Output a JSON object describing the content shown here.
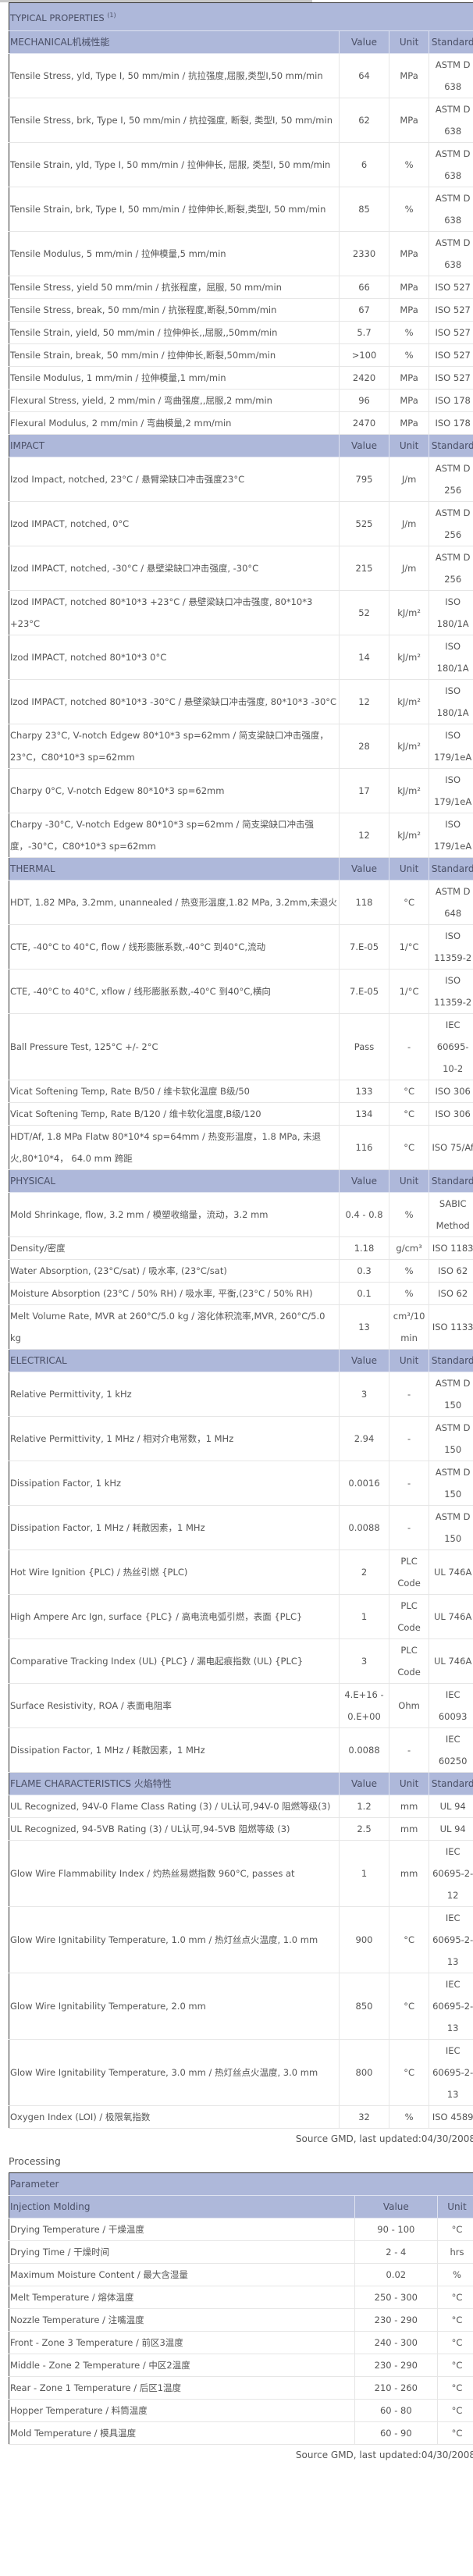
{
  "typical": {
    "title": "TYPICAL PROPERTIES",
    "title_sup": "(1)",
    "col_value": "Value",
    "col_unit": "Unit",
    "col_standard": "Standard",
    "sections": [
      {
        "name": "MECHANICAL机械性能",
        "rows": [
          [
            "Tensile Stress, yld, Type I, 50 mm/min / 抗拉强度,屈服,类型I,50 mm/min",
            "64",
            "MPa",
            "ASTM D 638"
          ],
          [
            "Tensile Stress, brk, Type I, 50 mm/min / 抗拉强度, 断裂, 类型I, 50 mm/min",
            "62",
            "MPa",
            "ASTM D 638"
          ],
          [
            "Tensile Strain, yld, Type I, 50 mm/min / 拉伸伸长, 屈服, 类型I, 50 mm/min",
            "6",
            "%",
            "ASTM D 638"
          ],
          [
            "Tensile Strain, brk, Type I, 50 mm/min / 拉伸伸长,断裂,类型I, 50 mm/min",
            "85",
            "%",
            "ASTM D 638"
          ],
          [
            "Tensile Modulus, 5 mm/min / 拉伸模量,5 mm/min",
            "2330",
            "MPa",
            "ASTM D 638"
          ],
          [
            "Tensile Stress, yield 50 mm/min / 抗张程度，屈服, 50 mm/min",
            "66",
            "MPa",
            "ISO 527"
          ],
          [
            "Tensile Stress, break, 50 mm/min / 抗张程度,断裂,50mm/min",
            "67",
            "MPa",
            "ISO 527"
          ],
          [
            "Tensile Strain, yield, 50 mm/min / 拉伸伸长,,屈服,,50mm/min",
            "5.7",
            "%",
            "ISO 527"
          ],
          [
            "Tensile Strain, break, 50 mm/min / 拉伸伸长,断裂,50mm/min",
            ">100",
            "%",
            "ISO 527"
          ],
          [
            "Tensile Modulus, 1 mm/min / 拉伸模量,1 mm/min",
            "2420",
            "MPa",
            "ISO 527"
          ],
          [
            "Flexural Stress, yield, 2 mm/min / 弯曲强度,,屈服,2 mm/min",
            "96",
            "MPa",
            "ISO 178"
          ],
          [
            "Flexural Modulus, 2 mm/min / 弯曲模量,2 mm/min",
            "2470",
            "MPa",
            "ISO 178"
          ]
        ]
      },
      {
        "name": "IMPACT",
        "rows": [
          [
            "Izod Impact, notched, 23°C / 悬臂梁缺口冲击强度23°C",
            "795",
            "J/m",
            "ASTM D 256"
          ],
          [
            "Izod IMPACT, notched, 0°C",
            "525",
            "J/m",
            "ASTM D 256"
          ],
          [
            "Izod IMPACT, notched, -30°C / 悬壁梁缺口冲击强度, -30°C",
            "215",
            "J/m",
            "ASTM D 256"
          ],
          [
            "Izod IMPACT, notched 80*10*3 +23°C / 悬壁梁缺口冲击强度, 80*10*3 +23°C",
            "52",
            "kJ/m²",
            "ISO 180/1A"
          ],
          [
            "Izod IMPACT, notched 80*10*3 0°C",
            "14",
            "kJ/m²",
            "ISO 180/1A"
          ],
          [
            "Izod IMPACT, notched 80*10*3 -30°C / 悬壁梁缺口冲击强度, 80*10*3 -30°C",
            "12",
            "kJ/m²",
            "ISO 180/1A"
          ],
          [
            "Charpy 23°C, V-notch Edgew 80*10*3 sp=62mm / 简支梁缺口冲击强度，23°C，C80*10*3 sp=62mm",
            "28",
            "kJ/m²",
            "ISO 179/1eA"
          ],
          [
            "Charpy 0°C, V-notch Edgew 80*10*3 sp=62mm",
            "17",
            "kJ/m²",
            "ISO 179/1eA"
          ],
          [
            "Charpy -30°C, V-notch Edgew 80*10*3 sp=62mm / 简支梁缺口冲击强度，-30°C，C80*10*3 sp=62mm",
            "12",
            "kJ/m²",
            "ISO 179/1eA"
          ]
        ]
      },
      {
        "name": "THERMAL",
        "rows": [
          [
            "HDT, 1.82 MPa, 3.2mm, unannealed / 热变形温度,1.82 MPa, 3.2mm,未退火",
            "118",
            "°C",
            "ASTM D 648"
          ],
          [
            "CTE, -40°C to 40°C, flow / 线形膨胀系数,-40°C 到40°C,流动",
            "7.E-05",
            "1/°C",
            "ISO 11359-2"
          ],
          [
            "CTE, -40°C to 40°C, xflow / 线形膨胀系数,-40°C 到40°C,横向",
            "7.E-05",
            "1/°C",
            "ISO 11359-2"
          ],
          [
            "Ball Pressure Test, 125°C +/- 2°C",
            "Pass",
            "-",
            "IEC 60695-10-2"
          ],
          [
            "Vicat Softening Temp, Rate B/50 / 维卡软化温度 B级/50",
            "133",
            "°C",
            "ISO 306"
          ],
          [
            "Vicat Softening Temp, Rate B/120 / 维卡软化温度,B级/120",
            "134",
            "°C",
            "ISO 306"
          ],
          [
            "HDT/Af, 1.8 MPa Flatw 80*10*4 sp=64mm / 热变形温度，1.8 MPa, 未退火,80*10*4， 64.0 mm 跨距",
            "116",
            "°C",
            "ISO 75/Af"
          ]
        ]
      },
      {
        "name": "PHYSICAL",
        "rows": [
          [
            "Mold Shrinkage, flow, 3.2 mm / 模塑收缩量，流动，3.2 mm",
            "0.4 - 0.8",
            "%",
            "SABIC Method"
          ],
          [
            "Density/密度",
            "1.18",
            "g/cm³",
            "ISO 1183"
          ],
          [
            "Water Absorption, (23°C/sat) / 吸水率, (23°C/sat)",
            "0.3",
            "%",
            "ISO 62"
          ],
          [
            "Moisture Absorption (23°C / 50% RH) / 吸水率, 平衡,(23°C / 50% RH)",
            "0.1",
            "%",
            "ISO 62"
          ],
          [
            "Melt Volume Rate, MVR at 260°C/5.0 kg / 溶化体积流率,MVR, 260°C/5.0 kg",
            "13",
            "cm³/10 min",
            "ISO 1133"
          ]
        ]
      },
      {
        "name": "ELECTRICAL",
        "rows": [
          [
            "Relative Permittivity, 1 kHz",
            "3",
            "-",
            "ASTM D 150"
          ],
          [
            "Relative Permittivity, 1 MHz / 相对介电常数，1 MHz",
            "2.94",
            "-",
            "ASTM D 150"
          ],
          [
            "Dissipation Factor, 1 kHz",
            "0.0016",
            "-",
            "ASTM D 150"
          ],
          [
            "Dissipation Factor, 1 MHz / 耗散因素，1 MHz",
            "0.0088",
            "-",
            "ASTM D 150"
          ],
          [
            "Hot Wire Ignition {PLC) / 热丝引燃 {PLC)",
            "2",
            "PLC Code",
            "UL 746A"
          ],
          [
            "High Ampere Arc Ign, surface {PLC} / 高电流电弧引燃，表面 {PLC}",
            "1",
            "PLC Code",
            "UL 746A"
          ],
          [
            "Comparative Tracking Index (UL) {PLC} / 漏电起痕指数 (UL) {PLC}",
            "3",
            "PLC Code",
            "UL 746A"
          ],
          [
            "Surface Resistivity, ROA / 表面电阻率",
            "4.E+16 - 0.E+00",
            "Ohm",
            "IEC 60093"
          ],
          [
            "Dissipation Factor, 1 MHz / 耗散因素，1 MHz",
            "0.0088",
            "-",
            "IEC 60250"
          ]
        ]
      },
      {
        "name": "FLAME CHARACTERISTICS 火焰特性",
        "rows": [
          [
            "UL Recognized, 94V-0 Flame Class Rating (3) / UL认可,94V-0 阻燃等级(3)",
            "1.2",
            "mm",
            "UL 94"
          ],
          [
            "UL Recognized, 94-5VB Rating (3) / UL认可,94-5VB 阻燃等级 (3)",
            "2.5",
            "mm",
            "UL 94"
          ],
          [
            "Glow Wire Flammability Index / 灼热丝易燃指数 960°C, passes at",
            "1",
            "mm",
            "IEC 60695-2-12"
          ],
          [
            "Glow Wire Ignitability Temperature, 1.0 mm / 热灯丝点火温度, 1.0 mm",
            "900",
            "°C",
            "IEC 60695-2-13"
          ],
          [
            "Glow Wire Ignitability Temperature, 2.0 mm",
            "850",
            "°C",
            "IEC 60695-2-13"
          ],
          [
            "Glow Wire Ignitability Temperature, 3.0 mm / 热灯丝点火温度, 3.0 mm",
            "800",
            "°C",
            "IEC 60695-2-13"
          ],
          [
            "Oxygen Index (LOI) / 极限氧指数",
            "32",
            "%",
            "ISO 4589"
          ]
        ]
      }
    ],
    "source": "Source GMD, last updated:04/30/2008"
  },
  "processing": {
    "label": "Processing",
    "parameter_header": "Parameter",
    "section": "Injection Molding",
    "col_value": "Value",
    "col_unit": "Unit",
    "rows": [
      [
        "Drying Temperature / 干燥温度",
        "90 - 100",
        "°C"
      ],
      [
        "Drying Time / 干燥时间",
        "2 - 4",
        "hrs"
      ],
      [
        "Maximum Moisture Content / 最大含湿量",
        "0.02",
        "%"
      ],
      [
        "Melt Temperature / 熔体温度",
        "250 - 300",
        "°C"
      ],
      [
        "Nozzle Temperature / 注嘴温度",
        "230 - 290",
        "°C"
      ],
      [
        "Front - Zone 3 Temperature / 前区3温度",
        "240 - 300",
        "°C"
      ],
      [
        "Middle - Zone 2 Temperature / 中区2温度",
        "230 - 290",
        "°C"
      ],
      [
        "Rear - Zone 1 Temperature / 后区1温度",
        "210 - 260",
        "°C"
      ],
      [
        "Hopper Temperature / 料筒温度",
        "60 - 80",
        "°C"
      ],
      [
        "Mold Temperature / 模具温度",
        "60 - 90",
        "°C"
      ]
    ],
    "source": "Source GMD, last updated:04/30/2008"
  },
  "colors": {
    "header_bg": "#aeb8da",
    "text": "#555555",
    "border": "#333333"
  }
}
